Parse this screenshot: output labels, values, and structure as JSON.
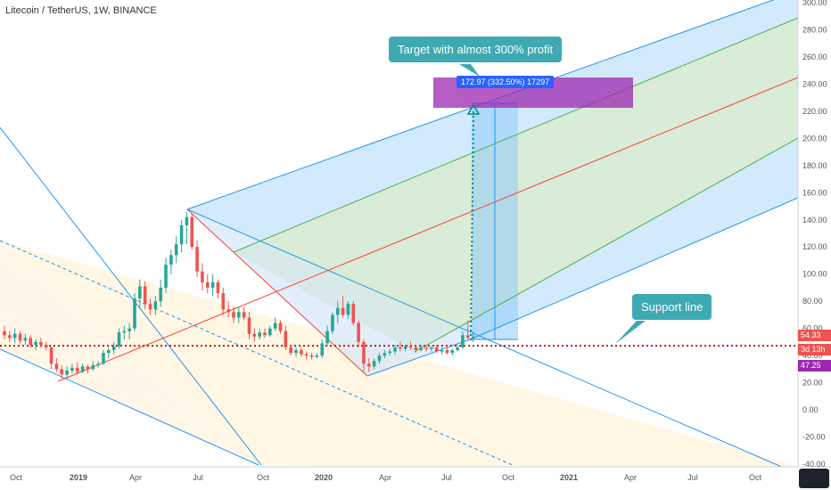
{
  "header": {
    "symbol_title": "Litecoin / TetherUS, 1W, BINANCE"
  },
  "annotations": {
    "target_callout": "Target with almost 300% profit",
    "support_callout": "Support line",
    "target_label": "172.97 (332.50%) 17297"
  },
  "price_badges": {
    "last_price": "54.33",
    "countdown": "3d 13h",
    "avg_price": "47.25"
  },
  "colors": {
    "up": "#26a69a",
    "down": "#ef5350",
    "pitchfork_outer": "#2196f3",
    "pitchfork_mid": "#4caf50",
    "pitchfork_median": "#f44336",
    "target_box": "#9c27b0",
    "callout": "#3fa9b3",
    "support_line": "#b71c1c"
  },
  "chart_data": {
    "type": "candlestick",
    "title": "Litecoin / TetherUS, 1W, BINANCE",
    "x_ticks": [
      "Oct",
      "2019",
      "Apr",
      "Jul",
      "Oct",
      "2020",
      "Apr",
      "Jul",
      "Oct",
      "2021",
      "Apr",
      "Jul",
      "Oct"
    ],
    "y_ticks": [
      "300.00",
      "280.00",
      "260.00",
      "240.00",
      "220.00",
      "200.00",
      "180.00",
      "160.00",
      "140.00",
      "120.00",
      "100.00",
      "80.00",
      "60.00",
      "40.00",
      "20.00",
      "0.00",
      "-20.00",
      "-40.00"
    ],
    "ylim": [
      -40,
      300
    ],
    "last_price": 54.33,
    "support_level": 47.25,
    "target_price": 172.97,
    "target_change_pct": 332.5,
    "series": [
      {
        "name": "LTCUSDT",
        "candles": [
          {
            "o": 58,
            "h": 62,
            "l": 52,
            "c": 55
          },
          {
            "o": 55,
            "h": 58,
            "l": 50,
            "c": 53
          },
          {
            "o": 53,
            "h": 60,
            "l": 49,
            "c": 56
          },
          {
            "o": 56,
            "h": 58,
            "l": 49,
            "c": 51
          },
          {
            "o": 51,
            "h": 56,
            "l": 48,
            "c": 53
          },
          {
            "o": 53,
            "h": 55,
            "l": 46,
            "c": 48
          },
          {
            "o": 48,
            "h": 52,
            "l": 44,
            "c": 50
          },
          {
            "o": 50,
            "h": 53,
            "l": 46,
            "c": 48
          },
          {
            "o": 48,
            "h": 50,
            "l": 44,
            "c": 46
          },
          {
            "o": 46,
            "h": 47,
            "l": 30,
            "c": 34
          },
          {
            "o": 34,
            "h": 38,
            "l": 28,
            "c": 30
          },
          {
            "o": 30,
            "h": 33,
            "l": 23,
            "c": 26
          },
          {
            "o": 26,
            "h": 32,
            "l": 23,
            "c": 29
          },
          {
            "o": 29,
            "h": 34,
            "l": 27,
            "c": 31
          },
          {
            "o": 31,
            "h": 35,
            "l": 26,
            "c": 28
          },
          {
            "o": 28,
            "h": 34,
            "l": 27,
            "c": 32
          },
          {
            "o": 32,
            "h": 33,
            "l": 27,
            "c": 30
          },
          {
            "o": 30,
            "h": 36,
            "l": 29,
            "c": 33
          },
          {
            "o": 33,
            "h": 36,
            "l": 31,
            "c": 34
          },
          {
            "o": 34,
            "h": 44,
            "l": 33,
            "c": 42
          },
          {
            "o": 42,
            "h": 46,
            "l": 38,
            "c": 44
          },
          {
            "o": 44,
            "h": 50,
            "l": 41,
            "c": 47
          },
          {
            "o": 47,
            "h": 60,
            "l": 45,
            "c": 57
          },
          {
            "o": 57,
            "h": 62,
            "l": 52,
            "c": 58
          },
          {
            "o": 58,
            "h": 64,
            "l": 52,
            "c": 60
          },
          {
            "o": 60,
            "h": 86,
            "l": 58,
            "c": 82
          },
          {
            "o": 82,
            "h": 96,
            "l": 75,
            "c": 91
          },
          {
            "o": 91,
            "h": 95,
            "l": 74,
            "c": 78
          },
          {
            "o": 78,
            "h": 82,
            "l": 70,
            "c": 74
          },
          {
            "o": 74,
            "h": 84,
            "l": 70,
            "c": 80
          },
          {
            "o": 80,
            "h": 96,
            "l": 76,
            "c": 90
          },
          {
            "o": 90,
            "h": 112,
            "l": 86,
            "c": 107
          },
          {
            "o": 107,
            "h": 118,
            "l": 100,
            "c": 114
          },
          {
            "o": 114,
            "h": 128,
            "l": 108,
            "c": 122
          },
          {
            "o": 122,
            "h": 140,
            "l": 116,
            "c": 136
          },
          {
            "o": 136,
            "h": 146,
            "l": 122,
            "c": 142
          },
          {
            "o": 142,
            "h": 144,
            "l": 118,
            "c": 120
          },
          {
            "o": 120,
            "h": 125,
            "l": 98,
            "c": 102
          },
          {
            "o": 102,
            "h": 108,
            "l": 88,
            "c": 94
          },
          {
            "o": 94,
            "h": 100,
            "l": 86,
            "c": 90
          },
          {
            "o": 90,
            "h": 100,
            "l": 84,
            "c": 94
          },
          {
            "o": 94,
            "h": 96,
            "l": 82,
            "c": 86
          },
          {
            "o": 86,
            "h": 90,
            "l": 70,
            "c": 74
          },
          {
            "o": 74,
            "h": 80,
            "l": 68,
            "c": 72
          },
          {
            "o": 72,
            "h": 76,
            "l": 64,
            "c": 68
          },
          {
            "o": 68,
            "h": 76,
            "l": 64,
            "c": 72
          },
          {
            "o": 72,
            "h": 76,
            "l": 66,
            "c": 68
          },
          {
            "o": 68,
            "h": 72,
            "l": 52,
            "c": 56
          },
          {
            "o": 56,
            "h": 60,
            "l": 50,
            "c": 54
          },
          {
            "o": 54,
            "h": 60,
            "l": 52,
            "c": 57
          },
          {
            "o": 57,
            "h": 60,
            "l": 53,
            "c": 55
          },
          {
            "o": 55,
            "h": 62,
            "l": 54,
            "c": 60
          },
          {
            "o": 60,
            "h": 68,
            "l": 58,
            "c": 64
          },
          {
            "o": 64,
            "h": 66,
            "l": 56,
            "c": 58
          },
          {
            "o": 58,
            "h": 62,
            "l": 44,
            "c": 46
          },
          {
            "o": 46,
            "h": 48,
            "l": 40,
            "c": 42
          },
          {
            "o": 42,
            "h": 46,
            "l": 39,
            "c": 44
          },
          {
            "o": 44,
            "h": 46,
            "l": 39,
            "c": 41
          },
          {
            "o": 41,
            "h": 43,
            "l": 37,
            "c": 40
          },
          {
            "o": 40,
            "h": 42,
            "l": 37,
            "c": 39
          },
          {
            "o": 39,
            "h": 42,
            "l": 38,
            "c": 40
          },
          {
            "o": 40,
            "h": 52,
            "l": 38,
            "c": 49
          },
          {
            "o": 49,
            "h": 62,
            "l": 47,
            "c": 58
          },
          {
            "o": 58,
            "h": 72,
            "l": 56,
            "c": 70
          },
          {
            "o": 70,
            "h": 80,
            "l": 64,
            "c": 75
          },
          {
            "o": 75,
            "h": 84,
            "l": 68,
            "c": 70
          },
          {
            "o": 70,
            "h": 80,
            "l": 67,
            "c": 78
          },
          {
            "o": 78,
            "h": 80,
            "l": 62,
            "c": 64
          },
          {
            "o": 64,
            "h": 66,
            "l": 46,
            "c": 50
          },
          {
            "o": 50,
            "h": 52,
            "l": 28,
            "c": 34
          },
          {
            "o": 34,
            "h": 38,
            "l": 28,
            "c": 32
          },
          {
            "o": 32,
            "h": 38,
            "l": 30,
            "c": 36
          },
          {
            "o": 36,
            "h": 42,
            "l": 34,
            "c": 40
          },
          {
            "o": 40,
            "h": 44,
            "l": 38,
            "c": 42
          },
          {
            "o": 42,
            "h": 45,
            "l": 40,
            "c": 43
          },
          {
            "o": 43,
            "h": 48,
            "l": 41,
            "c": 46
          },
          {
            "o": 46,
            "h": 50,
            "l": 43,
            "c": 45
          },
          {
            "o": 45,
            "h": 48,
            "l": 43,
            "c": 47
          },
          {
            "o": 47,
            "h": 50,
            "l": 44,
            "c": 46
          },
          {
            "o": 46,
            "h": 48,
            "l": 42,
            "c": 44
          },
          {
            "o": 44,
            "h": 48,
            "l": 43,
            "c": 46
          },
          {
            "o": 46,
            "h": 48,
            "l": 43,
            "c": 45
          },
          {
            "o": 45,
            "h": 47,
            "l": 43,
            "c": 46
          },
          {
            "o": 46,
            "h": 48,
            "l": 42,
            "c": 43
          },
          {
            "o": 43,
            "h": 46,
            "l": 41,
            "c": 44
          },
          {
            "o": 44,
            "h": 46,
            "l": 41,
            "c": 42
          },
          {
            "o": 42,
            "h": 45,
            "l": 40,
            "c": 44
          },
          {
            "o": 44,
            "h": 48,
            "l": 43,
            "c": 46
          },
          {
            "o": 46,
            "h": 58,
            "l": 45,
            "c": 55
          },
          {
            "o": 55,
            "h": 66,
            "l": 52,
            "c": 53
          },
          {
            "o": 53,
            "h": 58,
            "l": 50,
            "c": 54
          }
        ]
      }
    ]
  }
}
